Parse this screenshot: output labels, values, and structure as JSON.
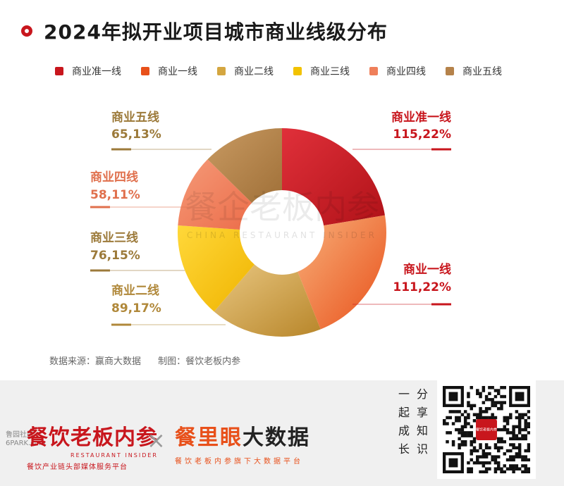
{
  "header": {
    "title": "2024年拟开业项目城市商业线级分布"
  },
  "chart_data": {
    "type": "pie",
    "style": "donut",
    "legend_position": "top",
    "categories": [
      "商业准一线",
      "商业一线",
      "商业二线",
      "商业三线",
      "商业四线",
      "商业五线"
    ],
    "values": [
      115,
      111,
      89,
      76,
      58,
      65
    ],
    "value_labels": [
      "115,22%",
      "111,22%",
      "89,17%",
      "76,15%",
      "58,11%",
      "65,13%"
    ],
    "colors": [
      "#c8161d",
      "#e8501a",
      "#d4a640",
      "#f2c200",
      "#ef7f5a",
      "#b5824a"
    ],
    "label_colors": [
      "#c8161d",
      "#c8161d",
      "#b0883a",
      "#9c7a3a",
      "#e0704d",
      "#9c7a3a"
    ]
  },
  "watermark": {
    "cn": "餐企老板内参",
    "en": "CHINA RESTAURANT INSIDER"
  },
  "source": {
    "data_source": "数据来源：赢商大数据",
    "made_by": "制图：餐饮老板内参"
  },
  "footer": {
    "brand1_cn": "餐饮老板内参",
    "brand1_en": "RESTAURANT INSIDER",
    "brand1_sub": "餐饮产业链头部媒体服务平台",
    "cross": "×",
    "brand2_cn": "餐里眼",
    "brand2_cn_dark": "大数据",
    "brand2_sub": "餐饮老板内参旗下大数据平台",
    "tagline": [
      "一",
      "分",
      "起",
      "享",
      "成",
      "知",
      "长",
      "识"
    ],
    "corner_watermark": [
      "鲁园社区",
      "6PARK.com"
    ],
    "qr_badge": "餐饮老板内参"
  }
}
